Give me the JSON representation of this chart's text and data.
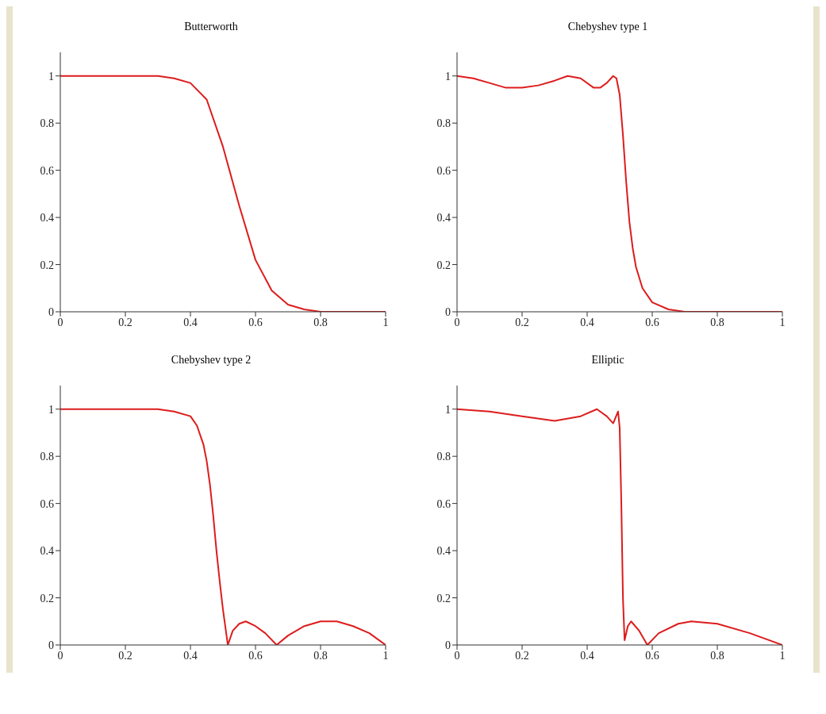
{
  "chart_data": [
    {
      "type": "line",
      "title": "Butterworth",
      "x": [
        0,
        0.1,
        0.2,
        0.3,
        0.35,
        0.4,
        0.45,
        0.5,
        0.55,
        0.6,
        0.65,
        0.7,
        0.75,
        0.8,
        0.9,
        1
      ],
      "series": [
        {
          "color": "#dd1c1c",
          "values": [
            1,
            1,
            1,
            1,
            0.99,
            0.97,
            0.9,
            0.7,
            0.45,
            0.22,
            0.09,
            0.03,
            0.01,
            0,
            0,
            0
          ]
        }
      ],
      "xlim": [
        0,
        1
      ],
      "ylim": [
        0,
        1.1
      ],
      "xticks": [
        0,
        0.2,
        0.4,
        0.6,
        0.8,
        1
      ],
      "yticks": [
        0,
        0.2,
        0.4,
        0.6,
        0.8,
        1
      ],
      "grid": false,
      "legend": false,
      "marker": "none",
      "line_style": "solid"
    },
    {
      "type": "line",
      "title": "Chebyshev type 1",
      "x": [
        0,
        0.05,
        0.1,
        0.15,
        0.2,
        0.25,
        0.3,
        0.34,
        0.38,
        0.42,
        0.44,
        0.46,
        0.48,
        0.49,
        0.5,
        0.51,
        0.52,
        0.53,
        0.54,
        0.55,
        0.57,
        0.6,
        0.65,
        0.7,
        0.8,
        1
      ],
      "series": [
        {
          "color": "#dd1c1c",
          "values": [
            1,
            0.99,
            0.97,
            0.95,
            0.95,
            0.96,
            0.98,
            1,
            0.99,
            0.95,
            0.95,
            0.97,
            1,
            0.99,
            0.92,
            0.75,
            0.55,
            0.38,
            0.27,
            0.19,
            0.1,
            0.04,
            0.01,
            0,
            0,
            0
          ]
        }
      ],
      "xlim": [
        0,
        1
      ],
      "ylim": [
        0,
        1.1
      ],
      "xticks": [
        0,
        0.2,
        0.4,
        0.6,
        0.8,
        1
      ],
      "yticks": [
        0,
        0.2,
        0.4,
        0.6,
        0.8,
        1
      ],
      "grid": false,
      "legend": false,
      "marker": "none",
      "line_style": "solid"
    },
    {
      "type": "line",
      "title": "Chebyshev type 2",
      "x": [
        0,
        0.1,
        0.2,
        0.3,
        0.35,
        0.4,
        0.42,
        0.44,
        0.45,
        0.46,
        0.47,
        0.48,
        0.49,
        0.5,
        0.51,
        0.515,
        0.53,
        0.55,
        0.57,
        0.6,
        0.63,
        0.665,
        0.7,
        0.75,
        0.8,
        0.85,
        0.9,
        0.95,
        1
      ],
      "series": [
        {
          "color": "#dd1c1c",
          "values": [
            1,
            1,
            1,
            1,
            0.99,
            0.97,
            0.93,
            0.85,
            0.78,
            0.68,
            0.55,
            0.4,
            0.27,
            0.15,
            0.05,
            0,
            0.06,
            0.09,
            0.1,
            0.08,
            0.05,
            0,
            0.04,
            0.08,
            0.1,
            0.1,
            0.08,
            0.05,
            0
          ]
        }
      ],
      "xlim": [
        0,
        1
      ],
      "ylim": [
        0,
        1.1
      ],
      "xticks": [
        0,
        0.2,
        0.4,
        0.6,
        0.8,
        1
      ],
      "yticks": [
        0,
        0.2,
        0.4,
        0.6,
        0.8,
        1
      ],
      "grid": false,
      "legend": false,
      "marker": "none",
      "line_style": "solid"
    },
    {
      "type": "line",
      "title": "Elliptic",
      "x": [
        0,
        0.1,
        0.2,
        0.3,
        0.38,
        0.43,
        0.46,
        0.48,
        0.495,
        0.5,
        0.505,
        0.51,
        0.515,
        0.525,
        0.535,
        0.56,
        0.585,
        0.62,
        0.68,
        0.72,
        0.8,
        0.9,
        1
      ],
      "series": [
        {
          "color": "#dd1c1c",
          "values": [
            1,
            0.99,
            0.97,
            0.95,
            0.97,
            1,
            0.97,
            0.94,
            0.99,
            0.92,
            0.6,
            0.2,
            0.02,
            0.08,
            0.1,
            0.06,
            0,
            0.05,
            0.09,
            0.1,
            0.09,
            0.05,
            0
          ]
        }
      ],
      "xlim": [
        0,
        1
      ],
      "ylim": [
        0,
        1.1
      ],
      "xticks": [
        0,
        0.2,
        0.4,
        0.6,
        0.8,
        1
      ],
      "yticks": [
        0,
        0.2,
        0.4,
        0.6,
        0.8,
        1
      ],
      "grid": false,
      "legend": false,
      "marker": "none",
      "line_style": "solid"
    }
  ]
}
